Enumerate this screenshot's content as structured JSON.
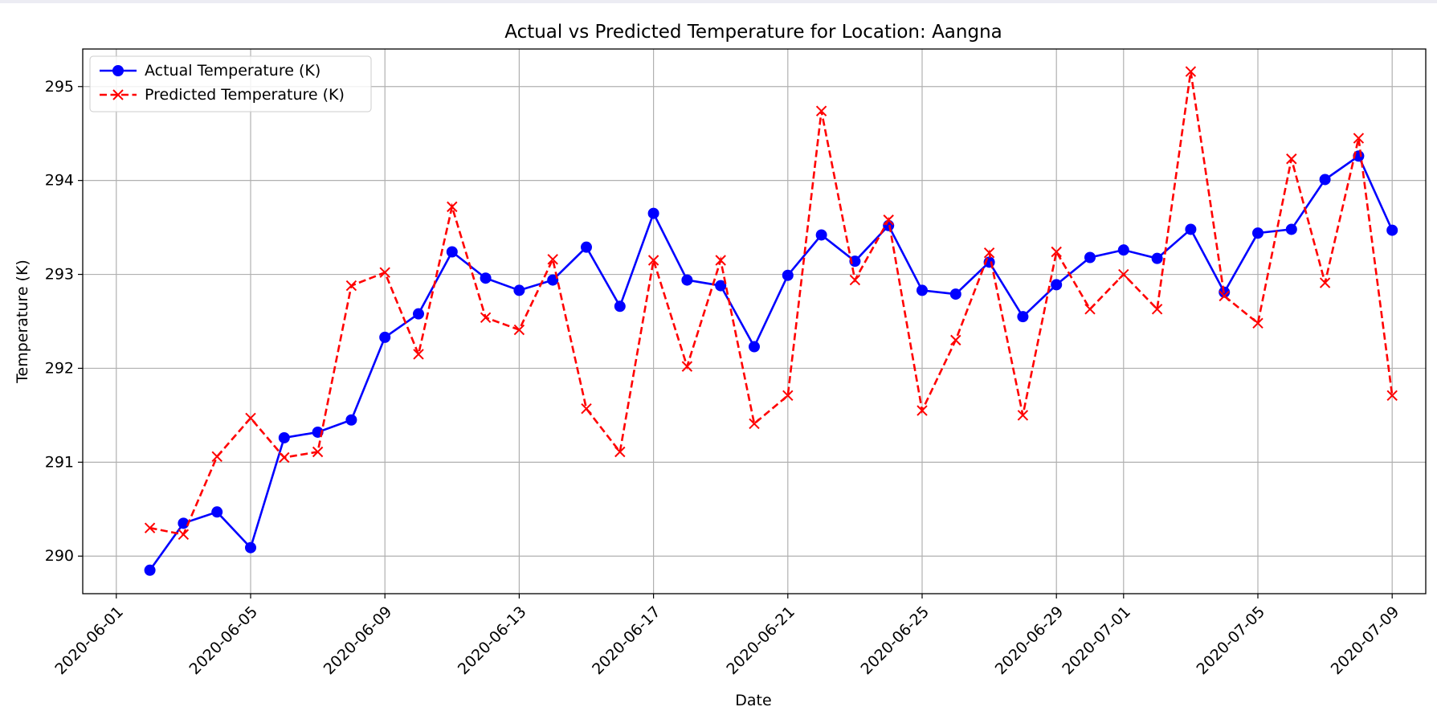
{
  "chart_data": {
    "type": "line",
    "title": "Actual vs Predicted Temperature for Location: Aangna",
    "xlabel": "Date",
    "ylabel": "Temperature (K)",
    "xlim": [
      "2020-05-31",
      "2020-07-10"
    ],
    "ylim": [
      289.6,
      295.4
    ],
    "x_ticks": [
      "2020-06-01",
      "2020-06-05",
      "2020-06-09",
      "2020-06-13",
      "2020-06-17",
      "2020-06-21",
      "2020-06-25",
      "2020-06-29",
      "2020-07-01",
      "2020-07-05",
      "2020-07-09"
    ],
    "y_ticks": [
      290,
      291,
      292,
      293,
      294,
      295
    ],
    "grid": true,
    "legend": "top-left",
    "x": [
      "2020-06-02",
      "2020-06-03",
      "2020-06-04",
      "2020-06-05",
      "2020-06-06",
      "2020-06-07",
      "2020-06-08",
      "2020-06-09",
      "2020-06-10",
      "2020-06-11",
      "2020-06-12",
      "2020-06-13",
      "2020-06-14",
      "2020-06-15",
      "2020-06-16",
      "2020-06-17",
      "2020-06-18",
      "2020-06-19",
      "2020-06-20",
      "2020-06-21",
      "2020-06-22",
      "2020-06-23",
      "2020-06-24",
      "2020-06-25",
      "2020-06-26",
      "2020-06-27",
      "2020-06-28",
      "2020-06-29",
      "2020-06-30",
      "2020-07-01",
      "2020-07-02",
      "2020-07-03",
      "2020-07-04",
      "2020-07-05",
      "2020-07-06",
      "2020-07-07",
      "2020-07-08",
      "2020-07-09"
    ],
    "series": [
      {
        "name": "Actual Temperature (K)",
        "color": "#0000ff",
        "style": "solid",
        "marker": "circle",
        "values": [
          289.85,
          290.35,
          290.47,
          290.09,
          291.26,
          291.32,
          291.45,
          292.33,
          292.58,
          293.24,
          292.96,
          292.83,
          292.94,
          293.29,
          292.66,
          293.65,
          292.94,
          292.88,
          292.23,
          292.99,
          293.42,
          293.14,
          293.52,
          292.83,
          292.79,
          293.13,
          292.55,
          292.89,
          293.18,
          293.26,
          293.17,
          293.48,
          292.81,
          293.44,
          293.48,
          294.01,
          294.26,
          293.47
        ]
      },
      {
        "name": "Predicted Temperature (K)",
        "color": "#ff0000",
        "style": "dashed",
        "marker": "x",
        "values": [
          290.3,
          290.23,
          291.06,
          291.47,
          291.05,
          291.11,
          292.88,
          293.02,
          292.15,
          293.72,
          292.54,
          292.41,
          293.16,
          291.57,
          291.11,
          293.15,
          292.02,
          293.15,
          291.41,
          291.71,
          294.74,
          292.94,
          293.58,
          291.55,
          292.3,
          293.23,
          291.5,
          293.24,
          292.63,
          293.0,
          292.63,
          295.16,
          292.77,
          292.48,
          294.23,
          292.91,
          294.45,
          291.71
        ]
      }
    ]
  }
}
